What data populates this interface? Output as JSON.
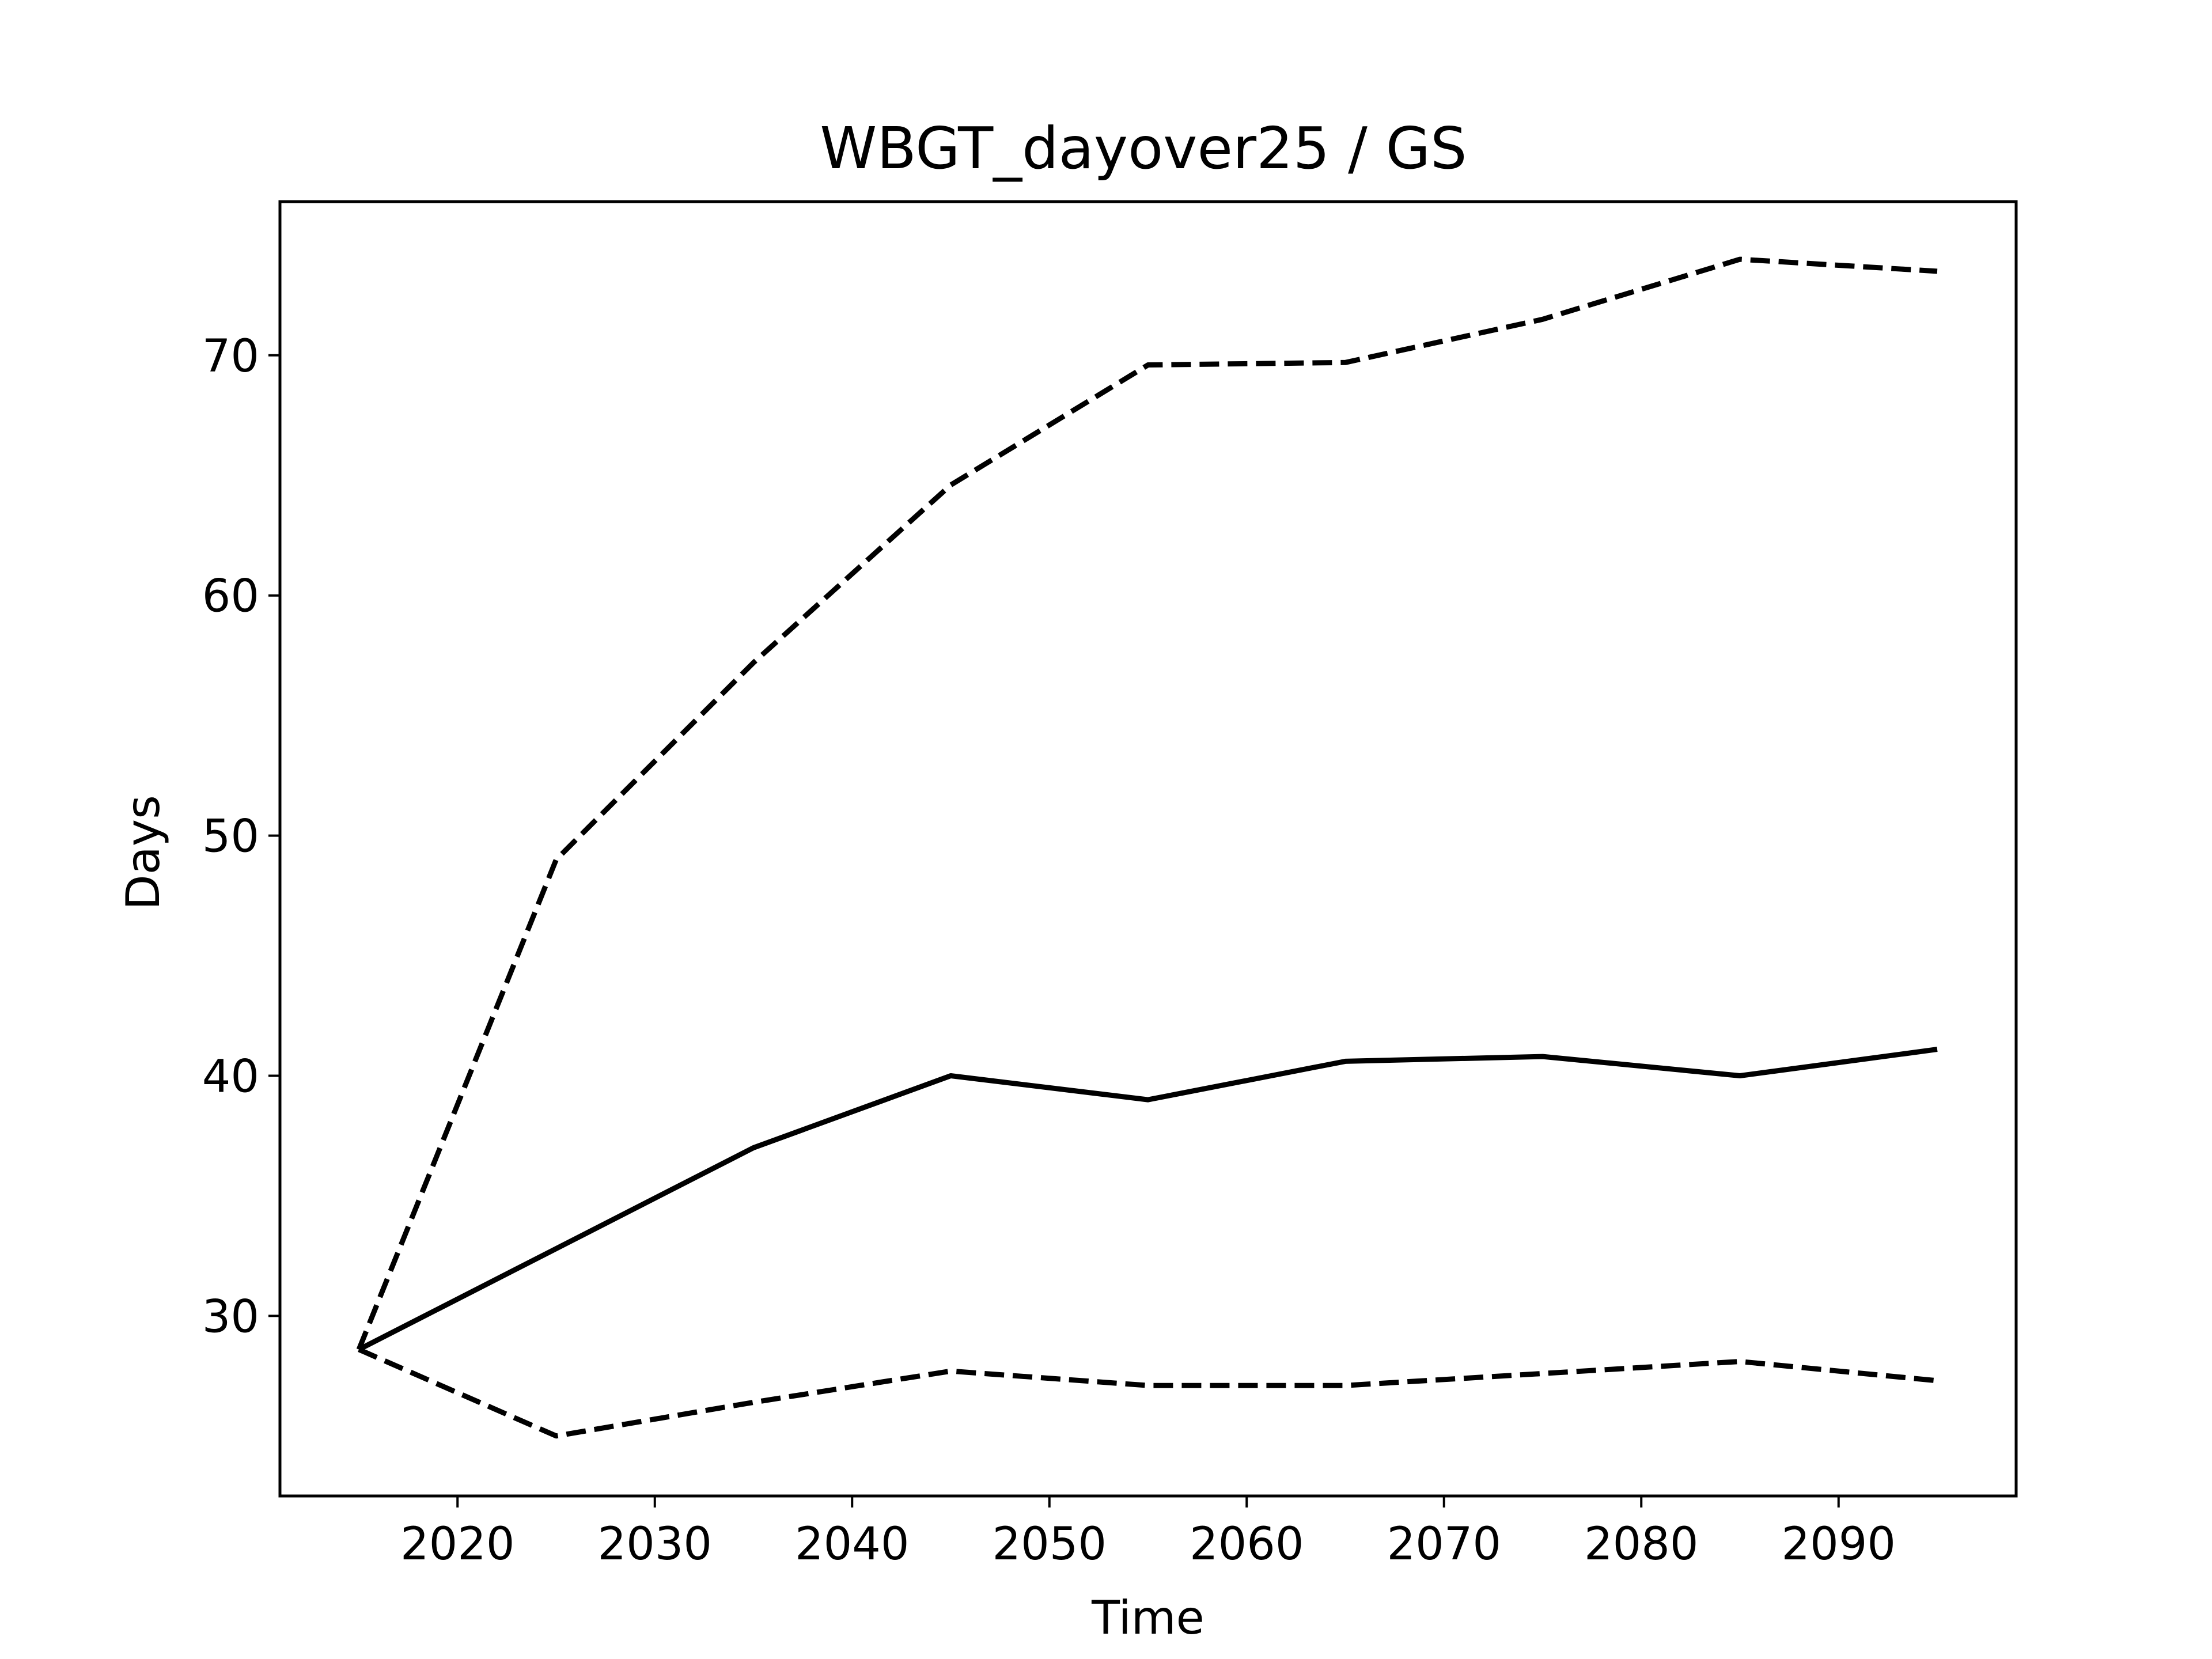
{
  "chart_data": {
    "type": "line",
    "title": "WBGT_dayover25 / GS",
    "xlabel": "Time",
    "ylabel": "Days",
    "xlim": [
      2011,
      2099
    ],
    "ylim": [
      22.5,
      76.4
    ],
    "xticks": [
      2020,
      2030,
      2040,
      2050,
      2060,
      2070,
      2080,
      2090
    ],
    "yticks": [
      30,
      40,
      50,
      60,
      70
    ],
    "grid": false,
    "x": [
      2015,
      2025,
      2035,
      2045,
      2055,
      2065,
      2075,
      2085,
      2095
    ],
    "series": [
      {
        "style": "dashed",
        "color": "#000000",
        "values": [
          28.6,
          49.0,
          57.2,
          64.6,
          69.6,
          69.7,
          71.5,
          74.0,
          73.5
        ]
      },
      {
        "style": "solid",
        "color": "#000000",
        "values": [
          28.6,
          32.8,
          37.0,
          40.0,
          39.0,
          40.6,
          40.8,
          40.0,
          41.1
        ]
      },
      {
        "style": "dashed",
        "color": "#000000",
        "values": [
          28.6,
          25.0,
          26.4,
          27.7,
          27.1,
          27.1,
          27.6,
          28.1,
          27.3
        ]
      }
    ]
  }
}
